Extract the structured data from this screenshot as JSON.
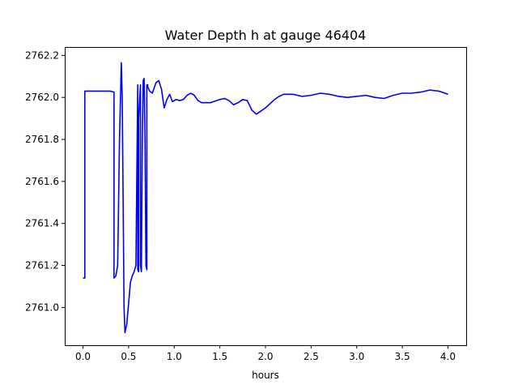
{
  "chart_data": {
    "type": "line",
    "title": "Water Depth h at gauge 46404",
    "xlabel": "hours",
    "ylabel": "",
    "xlim": [
      -0.2,
      4.2
    ],
    "ylim": [
      2760.82,
      2762.24
    ],
    "xticks": [
      0.0,
      0.5,
      1.0,
      1.5,
      2.0,
      2.5,
      3.0,
      3.5,
      4.0
    ],
    "xtick_labels": [
      "0.0",
      "0.5",
      "1.0",
      "1.5",
      "2.0",
      "2.5",
      "3.0",
      "3.5",
      "4.0"
    ],
    "yticks": [
      2761.0,
      2761.2,
      2761.4,
      2761.6,
      2761.8,
      2762.0,
      2762.2
    ],
    "ytick_labels": [
      "2761.0",
      "2761.2",
      "2761.4",
      "2761.6",
      "2761.8",
      "2762.0",
      "2762.2"
    ],
    "grid": false,
    "series": [
      {
        "color": "#0000ff",
        "x": [
          0.0,
          0.02,
          0.02,
          0.1,
          0.2,
          0.3,
          0.34,
          0.34,
          0.36,
          0.38,
          0.4,
          0.42,
          0.43,
          0.44,
          0.45,
          0.46,
          0.48,
          0.5,
          0.52,
          0.54,
          0.56,
          0.58,
          0.6,
          0.6,
          0.61,
          0.61,
          0.63,
          0.63,
          0.64,
          0.65,
          0.66,
          0.67,
          0.68,
          0.69,
          0.7,
          0.7,
          0.71,
          0.71,
          0.73,
          0.76,
          0.8,
          0.83,
          0.86,
          0.89,
          0.92,
          0.95,
          0.98,
          1.02,
          1.06,
          1.1,
          1.14,
          1.18,
          1.22,
          1.26,
          1.3,
          1.35,
          1.4,
          1.5,
          1.55,
          1.6,
          1.65,
          1.7,
          1.75,
          1.8,
          1.85,
          1.9,
          1.95,
          2.0,
          2.05,
          2.1,
          2.15,
          2.2,
          2.3,
          2.4,
          2.5,
          2.6,
          2.7,
          2.8,
          2.9,
          3.0,
          3.1,
          3.2,
          3.3,
          3.4,
          3.5,
          3.6,
          3.7,
          3.8,
          3.9,
          4.0
        ],
        "y": [
          2761.14,
          2761.14,
          2762.03,
          2762.03,
          2762.03,
          2762.03,
          2762.025,
          2761.14,
          2761.15,
          2761.2,
          2761.8,
          2762.165,
          2762.0,
          2761.5,
          2761.0,
          2760.88,
          2760.92,
          2761.02,
          2761.12,
          2761.15,
          2761.17,
          2761.2,
          2762.06,
          2761.18,
          2761.17,
          2761.9,
          2762.06,
          2761.2,
          2761.17,
          2761.8,
          2762.08,
          2762.09,
          2761.8,
          2761.2,
          2761.18,
          2762.06,
          2762.06,
          2762.05,
          2762.03,
          2762.02,
          2762.07,
          2762.08,
          2762.04,
          2761.95,
          2761.99,
          2762.015,
          2761.98,
          2761.99,
          2761.985,
          2761.99,
          2762.01,
          2762.02,
          2762.01,
          2761.985,
          2761.975,
          2761.975,
          2761.975,
          2761.99,
          2761.995,
          2761.985,
          2761.965,
          2761.975,
          2761.99,
          2761.985,
          2761.94,
          2761.92,
          2761.935,
          2761.95,
          2761.97,
          2761.99,
          2762.005,
          2762.015,
          2762.015,
          2762.005,
          2762.01,
          2762.02,
          2762.015,
          2762.005,
          2762.0,
          2762.005,
          2762.01,
          2762.0,
          2761.995,
          2762.01,
          2762.02,
          2762.02,
          2762.025,
          2762.035,
          2762.03,
          2762.015
        ]
      }
    ]
  }
}
